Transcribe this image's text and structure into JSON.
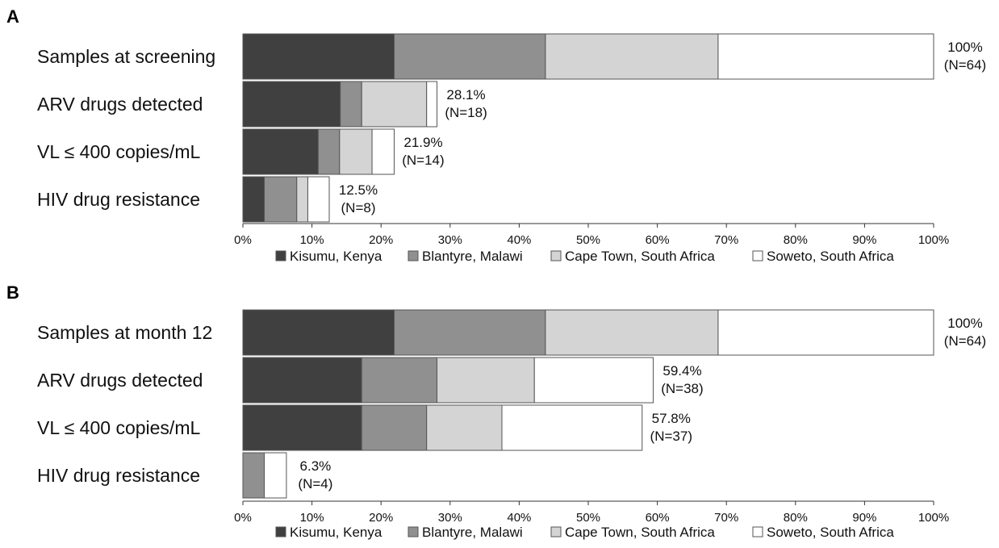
{
  "chart_data": [
    {
      "type": "bar",
      "orientation": "horizontal",
      "stacked": true,
      "panel": "A",
      "categories": [
        "Samples at screening",
        "ARV drugs detected",
        "VL ≤ 400 copies/mL",
        "HIV drug resistance"
      ],
      "series": [
        {
          "name": "Kisumu, Kenya",
          "color": "#404040",
          "values": [
            21.9,
            14.1,
            10.9,
            3.1
          ]
        },
        {
          "name": "Blantyre, Malawi",
          "color": "#909090",
          "values": [
            21.9,
            3.1,
            3.1,
            4.7
          ]
        },
        {
          "name": "Cape Town, South Africa",
          "color": "#d4d4d4",
          "values": [
            25.0,
            9.4,
            4.7,
            1.6
          ]
        },
        {
          "name": "Soweto, South Africa",
          "color": "#ffffff",
          "values": [
            31.2,
            1.5,
            3.2,
            3.1
          ]
        }
      ],
      "totals": [
        "100%",
        "28.1%",
        "21.9%",
        "12.5%"
      ],
      "counts": [
        "(N=64)",
        "(N=18)",
        "(N=14)",
        "(N=8)"
      ],
      "xlim": [
        0,
        100
      ],
      "xticks": [
        "0%",
        "10%",
        "20%",
        "30%",
        "40%",
        "50%",
        "60%",
        "70%",
        "80%",
        "90%",
        "100%"
      ],
      "legend": "bottom"
    },
    {
      "type": "bar",
      "orientation": "horizontal",
      "stacked": true,
      "panel": "B",
      "categories": [
        "Samples at month 12",
        "ARV drugs detected",
        "VL ≤ 400 copies/mL",
        "HIV drug resistance"
      ],
      "series": [
        {
          "name": "Kisumu, Kenya",
          "color": "#404040",
          "values": [
            21.9,
            17.2,
            17.2,
            0
          ]
        },
        {
          "name": "Blantyre, Malawi",
          "color": "#909090",
          "values": [
            21.9,
            10.9,
            9.4,
            3.1
          ]
        },
        {
          "name": "Cape Town, South Africa",
          "color": "#d4d4d4",
          "values": [
            25.0,
            14.1,
            10.9,
            0
          ]
        },
        {
          "name": "Soweto, South Africa",
          "color": "#ffffff",
          "values": [
            31.2,
            17.2,
            20.3,
            3.2
          ]
        }
      ],
      "totals": [
        "100%",
        "59.4%",
        "57.8%",
        "6.3%"
      ],
      "counts": [
        "(N=64)",
        "(N=38)",
        "(N=37)",
        "(N=4)"
      ],
      "xlim": [
        0,
        100
      ],
      "xticks": [
        "0%",
        "10%",
        "20%",
        "30%",
        "40%",
        "50%",
        "60%",
        "70%",
        "80%",
        "90%",
        "100%"
      ],
      "legend": "bottom"
    }
  ]
}
